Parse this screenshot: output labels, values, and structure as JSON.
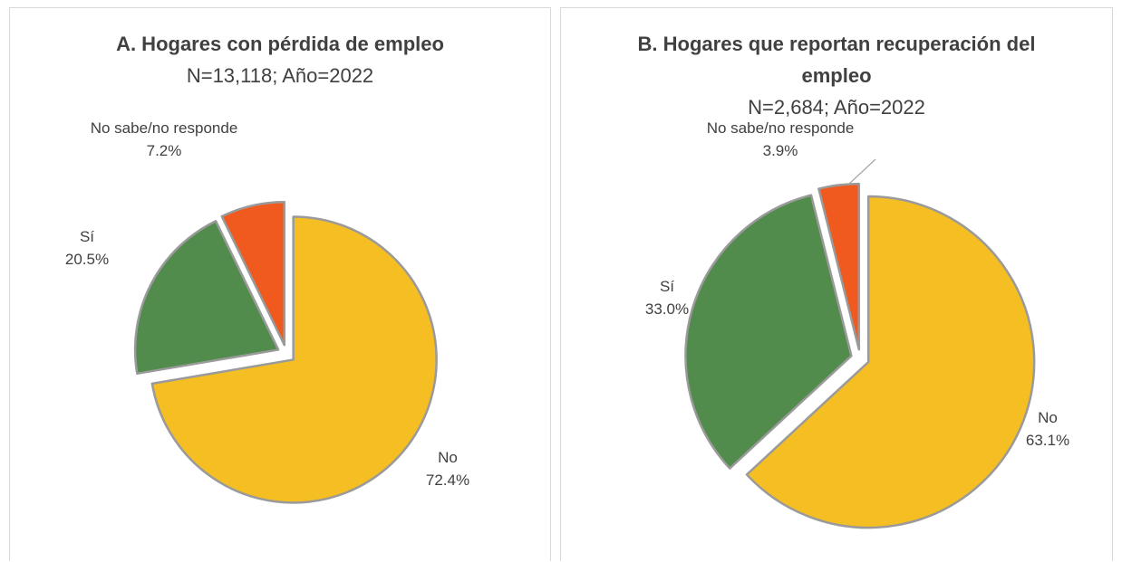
{
  "chart_data": [
    {
      "type": "pie",
      "title": "A. Hogares con pérdida de empleo",
      "subtitle": "N=13,118; Año=2022",
      "categories": [
        "No",
        "Sí",
        "No sabe/no responde"
      ],
      "values": [
        72.4,
        20.5,
        7.2
      ],
      "value_labels": [
        "72.4%",
        "20.5%",
        "7.2%"
      ],
      "colors": [
        "#F5BE22",
        "#528C4C",
        "#F05A1E"
      ]
    },
    {
      "type": "pie",
      "title": "B. Hogares que reportan recuperación del empleo",
      "subtitle": "N=2,684; Año=2022",
      "categories": [
        "No",
        "Sí",
        "No sabe/no responde"
      ],
      "values": [
        63.1,
        33.0,
        3.9
      ],
      "value_labels": [
        "63.1%",
        "33.0%",
        "3.9%"
      ],
      "colors": [
        "#F5BE22",
        "#528C4C",
        "#F05A1E"
      ]
    }
  ]
}
